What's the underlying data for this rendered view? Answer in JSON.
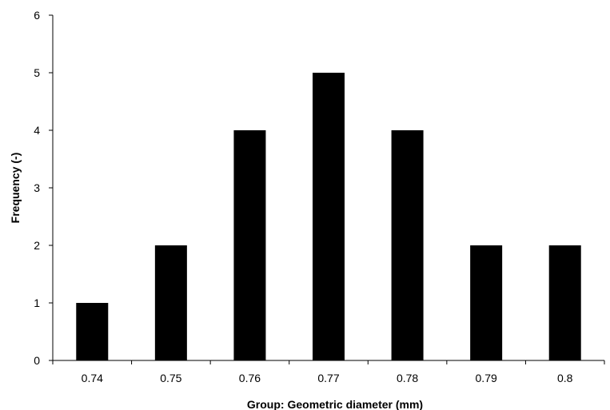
{
  "chart_data": {
    "type": "bar",
    "categories": [
      "0.74",
      "0.75",
      "0.76",
      "0.77",
      "0.78",
      "0.79",
      "0.8"
    ],
    "values": [
      1,
      2,
      4,
      5,
      4,
      2,
      2
    ],
    "title": "",
    "xlabel": "Group: Geometric diameter (mm)",
    "ylabel": "Frequency (-)",
    "ylim": [
      0,
      6
    ],
    "yticks": [
      "0",
      "1",
      "2",
      "3",
      "4",
      "5",
      "6"
    ],
    "grid": false,
    "bar_color": "#000000"
  }
}
